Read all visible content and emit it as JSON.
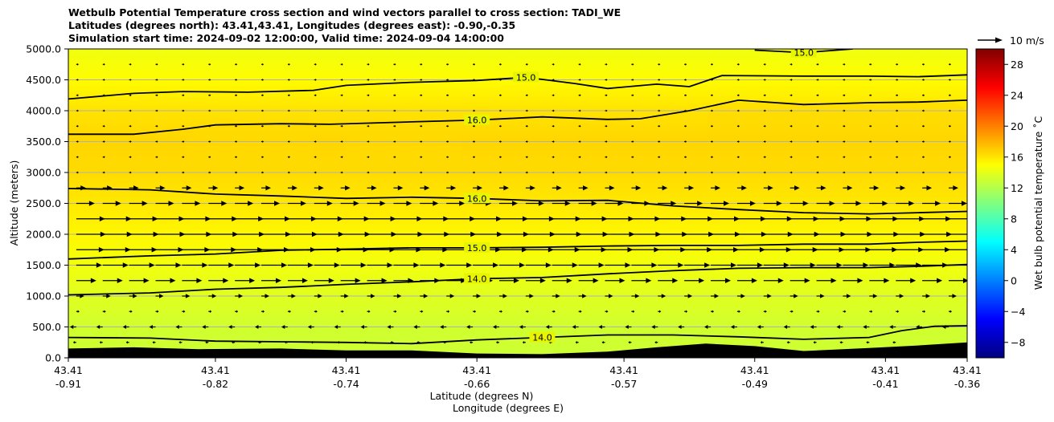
{
  "title_lines": [
    "Wetbulb Potential Temperature cross section and wind vectors parallel to cross section: TADI_WE",
    "Latitudes (degrees north): 43.41,43.41, Longitudes (degrees east): -0.90,-0.35",
    "Simulation start time: 2024-09-02 12:00:00, Valid time: 2024-09-04 14:00:00"
  ],
  "chart_data": {
    "type": "heatmap",
    "ylabel": "Altitude (meters)",
    "xlabel": "Latitude (degrees N)",
    "xlabel2": "Longitude (degrees E)",
    "ylim": [
      0,
      5000
    ],
    "yticks": [
      0,
      500,
      1000,
      1500,
      2000,
      2500,
      3000,
      3500,
      4000,
      4500,
      5000
    ],
    "ytick_labels": [
      "0.0",
      "500.0",
      "1000.0",
      "1500.0",
      "2000.0",
      "2500.0",
      "3000.0",
      "3500.0",
      "4000.0",
      "4500.0",
      "5000.0"
    ],
    "grid": "horizontal",
    "xticks": [
      {
        "lat": "43.41",
        "lon": "-0.91"
      },
      {
        "lat": "43.41",
        "lon": "-0.82"
      },
      {
        "lat": "43.41",
        "lon": "-0.74"
      },
      {
        "lat": "43.41",
        "lon": "-0.66"
      },
      {
        "lat": "43.41",
        "lon": "-0.57"
      },
      {
        "lat": "43.41",
        "lon": "-0.49"
      },
      {
        "lat": "43.41",
        "lon": "-0.41"
      },
      {
        "lat": "43.41",
        "lon": "-0.36"
      }
    ],
    "lon_range": [
      -0.91,
      -0.36
    ],
    "tick_lons": [
      -0.91,
      -0.82,
      -0.74,
      -0.66,
      -0.57,
      -0.49,
      -0.41,
      -0.36
    ],
    "colorbar": {
      "label": "Wet bulb potential temperature $^\\circ$C",
      "label_text": "Wet bulb potential temperature ˚C",
      "range": [
        -10,
        30
      ],
      "ticks": [
        -8,
        -4,
        0,
        4,
        8,
        12,
        16,
        20,
        24,
        28
      ],
      "tick_labels": [
        "−8",
        "−4",
        "0",
        "4",
        "8",
        "12",
        "16",
        "20",
        "24",
        "28"
      ],
      "colormap": "jet"
    },
    "quiver_key": {
      "label": "10 m/s",
      "speed": 10
    },
    "contours": [
      {
        "level": 14.0,
        "label": "14.0",
        "points": [
          [
            -0.91,
            330
          ],
          [
            -0.86,
            320
          ],
          [
            -0.82,
            270
          ],
          [
            -0.78,
            260
          ],
          [
            -0.74,
            250
          ],
          [
            -0.7,
            230
          ],
          [
            -0.66,
            290
          ],
          [
            -0.62,
            330
          ],
          [
            -0.58,
            370
          ],
          [
            -0.54,
            370
          ],
          [
            -0.5,
            340
          ],
          [
            -0.46,
            300
          ],
          [
            -0.42,
            330
          ],
          [
            -0.4,
            440
          ],
          [
            -0.38,
            510
          ],
          [
            -0.36,
            520
          ]
        ]
      },
      {
        "level": 14.0,
        "label": "14.0",
        "points": [
          [
            -0.91,
            1020
          ],
          [
            -0.86,
            1050
          ],
          [
            -0.82,
            1110
          ],
          [
            -0.78,
            1140
          ],
          [
            -0.74,
            1190
          ],
          [
            -0.7,
            1230
          ],
          [
            -0.66,
            1280
          ],
          [
            -0.62,
            1300
          ],
          [
            -0.58,
            1360
          ],
          [
            -0.54,
            1410
          ],
          [
            -0.5,
            1450
          ],
          [
            -0.46,
            1460
          ],
          [
            -0.42,
            1460
          ],
          [
            -0.39,
            1480
          ],
          [
            -0.36,
            1510
          ]
        ]
      },
      {
        "level": 15.0,
        "label": "15.0",
        "points": [
          [
            -0.91,
            1600
          ],
          [
            -0.86,
            1650
          ],
          [
            -0.82,
            1680
          ],
          [
            -0.78,
            1740
          ],
          [
            -0.74,
            1760
          ],
          [
            -0.7,
            1780
          ],
          [
            -0.66,
            1780
          ],
          [
            -0.62,
            1790
          ],
          [
            -0.58,
            1810
          ],
          [
            -0.54,
            1820
          ],
          [
            -0.5,
            1820
          ],
          [
            -0.46,
            1840
          ],
          [
            -0.42,
            1840
          ],
          [
            -0.39,
            1870
          ],
          [
            -0.36,
            1890
          ]
        ]
      },
      {
        "level": 16.0,
        "label": "16.0",
        "points": [
          [
            -0.91,
            2740
          ],
          [
            -0.86,
            2720
          ],
          [
            -0.82,
            2650
          ],
          [
            -0.78,
            2620
          ],
          [
            -0.74,
            2580
          ],
          [
            -0.7,
            2600
          ],
          [
            -0.66,
            2580
          ],
          [
            -0.62,
            2540
          ],
          [
            -0.58,
            2550
          ],
          [
            -0.54,
            2460
          ],
          [
            -0.5,
            2400
          ],
          [
            -0.46,
            2350
          ],
          [
            -0.42,
            2330
          ],
          [
            -0.39,
            2350
          ],
          [
            -0.36,
            2370
          ]
        ]
      },
      {
        "level": 16.0,
        "label": "16.0",
        "points": [
          [
            -0.91,
            3620
          ],
          [
            -0.87,
            3620
          ],
          [
            -0.84,
            3700
          ],
          [
            -0.82,
            3770
          ],
          [
            -0.78,
            3790
          ],
          [
            -0.75,
            3780
          ],
          [
            -0.7,
            3820
          ],
          [
            -0.66,
            3850
          ],
          [
            -0.62,
            3900
          ],
          [
            -0.58,
            3860
          ],
          [
            -0.56,
            3870
          ],
          [
            -0.53,
            4000
          ],
          [
            -0.5,
            4170
          ],
          [
            -0.46,
            4100
          ],
          [
            -0.42,
            4130
          ],
          [
            -0.39,
            4140
          ],
          [
            -0.36,
            4170
          ]
        ]
      },
      {
        "level": 15.0,
        "label": "15.0",
        "points": [
          [
            -0.91,
            4190
          ],
          [
            -0.87,
            4280
          ],
          [
            -0.84,
            4310
          ],
          [
            -0.8,
            4300
          ],
          [
            -0.76,
            4330
          ],
          [
            -0.74,
            4410
          ],
          [
            -0.7,
            4460
          ],
          [
            -0.66,
            4490
          ],
          [
            -0.63,
            4540
          ],
          [
            -0.6,
            4440
          ],
          [
            -0.58,
            4360
          ],
          [
            -0.55,
            4430
          ],
          [
            -0.53,
            4390
          ],
          [
            -0.51,
            4570
          ],
          [
            -0.46,
            4560
          ],
          [
            -0.42,
            4560
          ],
          [
            -0.39,
            4550
          ],
          [
            -0.36,
            4580
          ]
        ]
      },
      {
        "level": 15.0,
        "label": "15.0",
        "points": [
          [
            -0.49,
            4980
          ],
          [
            -0.46,
            4940
          ],
          [
            -0.43,
            5000
          ]
        ]
      }
    ],
    "terrain": [
      [
        -0.91,
        150
      ],
      [
        -0.87,
        170
      ],
      [
        -0.83,
        140
      ],
      [
        -0.78,
        150
      ],
      [
        -0.74,
        120
      ],
      [
        -0.7,
        120
      ],
      [
        -0.66,
        70
      ],
      [
        -0.62,
        60
      ],
      [
        -0.58,
        100
      ],
      [
        -0.55,
        170
      ],
      [
        -0.52,
        230
      ],
      [
        -0.49,
        190
      ],
      [
        -0.46,
        110
      ],
      [
        -0.42,
        160
      ],
      [
        -0.39,
        200
      ],
      [
        -0.36,
        250
      ]
    ],
    "temperature_field": [
      {
        "altitude": 0,
        "value": 13.0
      },
      {
        "altitude": 500,
        "value": 13.2
      },
      {
        "altitude": 1000,
        "value": 13.8
      },
      {
        "altitude": 1500,
        "value": 14.5
      },
      {
        "altitude": 2000,
        "value": 15.3
      },
      {
        "altitude": 2500,
        "value": 15.9
      },
      {
        "altitude": 3000,
        "value": 16.4
      },
      {
        "altitude": 3500,
        "value": 16.6
      },
      {
        "altitude": 4000,
        "value": 16.1
      },
      {
        "altitude": 4500,
        "value": 15.1
      },
      {
        "altitude": 5000,
        "value": 14.4
      }
    ],
    "wind_profile": [
      {
        "altitude": 250,
        "u": -0.4
      },
      {
        "altitude": 500,
        "u": -0.8
      },
      {
        "altitude": 750,
        "u": 0.4
      },
      {
        "altitude": 1000,
        "u": 1.0
      },
      {
        "altitude": 1250,
        "u": 2.5
      },
      {
        "altitude": 1500,
        "u": 3.2
      },
      {
        "altitude": 1750,
        "u": 3.5
      },
      {
        "altitude": 2000,
        "u": 3.7
      },
      {
        "altitude": 2250,
        "u": 3.6
      },
      {
        "altitude": 2500,
        "u": 2.3
      },
      {
        "altitude": 2750,
        "u": 1.2
      },
      {
        "altitude": 3000,
        "u": 0.3
      },
      {
        "altitude": 3250,
        "u": 0.3
      },
      {
        "altitude": 3500,
        "u": 0.3
      },
      {
        "altitude": 3750,
        "u": 0.3
      },
      {
        "altitude": 4000,
        "u": 0.3
      },
      {
        "altitude": 4250,
        "u": 0.3
      },
      {
        "altitude": 4500,
        "u": 0.3
      },
      {
        "altitude": 4750,
        "u": 0.3
      }
    ],
    "colors": {
      "terrain": "#000000",
      "contour": "#000000",
      "grid": "#b0b0b0"
    }
  }
}
